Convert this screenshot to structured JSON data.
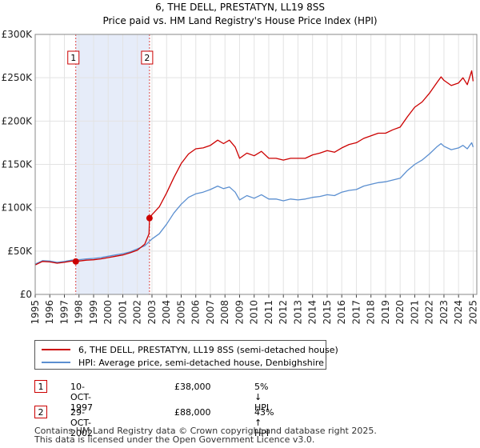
{
  "title_line1": "6, THE DELL, PRESTATYN, LL19 8SS",
  "title_line2": "Price paid vs. HM Land Registry's House Price Index (HPI)",
  "chart_data": {
    "type": "line",
    "ylim": [
      0,
      300000
    ],
    "xlim": [
      1995,
      2025.25
    ],
    "yticks": [
      0,
      50000,
      100000,
      150000,
      200000,
      250000,
      300000
    ],
    "ytick_labels": [
      "£0",
      "£50K",
      "£100K",
      "£150K",
      "£200K",
      "£250K",
      "£300K"
    ],
    "xticks": [
      1995,
      1996,
      1997,
      1998,
      1999,
      2000,
      2001,
      2002,
      2003,
      2004,
      2005,
      2006,
      2007,
      2008,
      2009,
      2010,
      2011,
      2012,
      2013,
      2014,
      2015,
      2016,
      2017,
      2018,
      2019,
      2020,
      2021,
      2022,
      2023,
      2024,
      2025
    ],
    "xtick_labels": [
      "1995",
      "1996",
      "1997",
      "1998",
      "1999",
      "2000",
      "2001",
      "2002",
      "2003",
      "2004",
      "2005",
      "2006",
      "2007",
      "2008",
      "2009",
      "2010",
      "2011",
      "2012",
      "2013",
      "2014",
      "2015",
      "2016",
      "2017",
      "2018",
      "2019",
      "2020",
      "2021",
      "2022",
      "2023",
      "2024",
      "2025"
    ],
    "shaded_span": [
      1997.78,
      2002.83
    ],
    "series": [
      {
        "name": "6, THE DELL, PRESTATYN, LL19 8SS (semi-detached house)",
        "color": "#cc0000",
        "x": [
          1995.0,
          1995.5,
          1996.0,
          1996.5,
          1997.0,
          1997.5,
          1997.78,
          1998.0,
          1998.5,
          1999.0,
          1999.5,
          2000.0,
          2000.5,
          2001.0,
          2001.5,
          2002.0,
          2002.5,
          2002.8,
          2002.83,
          2003.0,
          2003.5,
          2004.0,
          2004.5,
          2005.0,
          2005.5,
          2006.0,
          2006.5,
          2007.0,
          2007.5,
          2007.9,
          2008.3,
          2008.7,
          2009.0,
          2009.5,
          2010.0,
          2010.5,
          2011.0,
          2011.5,
          2012.0,
          2012.5,
          2013.0,
          2013.5,
          2014.0,
          2014.5,
          2015.0,
          2015.5,
          2016.0,
          2016.5,
          2017.0,
          2017.5,
          2018.0,
          2018.5,
          2019.0,
          2019.5,
          2020.0,
          2020.5,
          2021.0,
          2021.5,
          2022.0,
          2022.5,
          2022.8,
          2023.0,
          2023.5,
          2024.0,
          2024.3,
          2024.6,
          2024.9,
          2025.0
        ],
        "values": [
          34000,
          38000,
          37500,
          36000,
          37000,
          38500,
          38000,
          38500,
          39500,
          40000,
          41000,
          42500,
          44000,
          45500,
          48000,
          51000,
          58000,
          70000,
          88000,
          92000,
          101000,
          117000,
          135000,
          151000,
          162000,
          168000,
          169000,
          172000,
          178000,
          174000,
          178000,
          170000,
          157000,
          163000,
          160000,
          165000,
          157000,
          157000,
          155000,
          157000,
          157000,
          157000,
          161000,
          163000,
          166000,
          164000,
          169000,
          173000,
          175000,
          180000,
          183000,
          186000,
          186000,
          190000,
          193000,
          205000,
          216000,
          222000,
          232000,
          244000,
          251000,
          247000,
          241000,
          244000,
          250000,
          242000,
          258000,
          246000
        ]
      },
      {
        "name": "HPI: Average price, semi-detached house, Denbighshire",
        "color": "#5b8fd0",
        "x": [
          1995.0,
          1995.5,
          1996.0,
          1996.5,
          1997.0,
          1997.5,
          1998.0,
          1998.5,
          1999.0,
          1999.5,
          2000.0,
          2000.5,
          2001.0,
          2001.5,
          2002.0,
          2002.5,
          2003.0,
          2003.5,
          2004.0,
          2004.5,
          2005.0,
          2005.5,
          2006.0,
          2006.5,
          2007.0,
          2007.5,
          2007.9,
          2008.3,
          2008.7,
          2009.0,
          2009.5,
          2010.0,
          2010.5,
          2011.0,
          2011.5,
          2012.0,
          2012.5,
          2013.0,
          2013.5,
          2014.0,
          2014.5,
          2015.0,
          2015.5,
          2016.0,
          2016.5,
          2017.0,
          2017.5,
          2018.0,
          2018.5,
          2019.0,
          2019.5,
          2020.0,
          2020.5,
          2021.0,
          2021.5,
          2022.0,
          2022.5,
          2022.8,
          2023.0,
          2023.5,
          2024.0,
          2024.3,
          2024.6,
          2024.9,
          2025.0
        ],
        "values": [
          35000,
          39000,
          38500,
          37000,
          38000,
          39500,
          40000,
          41000,
          41500,
          42500,
          44000,
          45500,
          47000,
          49000,
          52500,
          56000,
          64000,
          70000,
          81000,
          94000,
          104000,
          112000,
          116000,
          118000,
          121000,
          125000,
          122000,
          124000,
          118000,
          109000,
          114000,
          111000,
          115000,
          110000,
          110000,
          108000,
          110000,
          109000,
          110000,
          112000,
          113000,
          115000,
          114000,
          118000,
          120000,
          121000,
          125000,
          127000,
          129000,
          130000,
          132000,
          134000,
          143000,
          150000,
          155000,
          162000,
          170000,
          174000,
          171000,
          167000,
          169000,
          172000,
          168000,
          175000,
          170000
        ]
      }
    ],
    "sale_points": [
      {
        "x": 1997.78,
        "value": 38000
      },
      {
        "x": 2002.83,
        "value": 88000
      }
    ]
  },
  "legend": {
    "items": [
      {
        "label": "6, THE DELL, PRESTATYN, LL19 8SS (semi-detached house)",
        "color": "#cc0000"
      },
      {
        "label": "HPI: Average price, semi-detached house, Denbighshire",
        "color": "#5b8fd0"
      }
    ]
  },
  "events": [
    {
      "num": "1",
      "date": "10-OCT-1997",
      "price": "£38,000",
      "hpi": "5% ↓ HPI"
    },
    {
      "num": "2",
      "date": "29-OCT-2002",
      "price": "£88,000",
      "hpi": "43% ↑ HPI"
    }
  ],
  "footer": {
    "line1": "Contains HM Land Registry data © Crown copyright and database right 2025.",
    "line2": "This data is licensed under the Open Government Licence v3.0."
  }
}
